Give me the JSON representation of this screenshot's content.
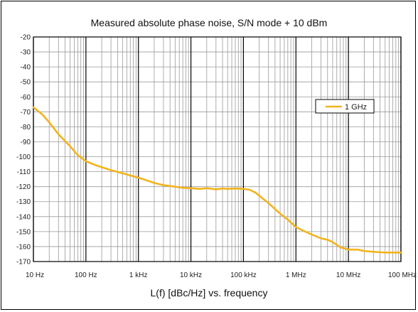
{
  "colors": {
    "series": "#f2b41c",
    "grid_major": "#000000",
    "grid_minor": "#9a9a9a",
    "background": "#ffffff"
  },
  "chart_data": {
    "type": "line",
    "title": "Measured absolute phase noise, S/N mode + 10 dBm",
    "xlabel": "L(f) [dBc/Hz] vs. frequency",
    "ylabel": "",
    "x_scale": "log",
    "xlim": [
      10,
      100000000
    ],
    "ylim": [
      -170,
      -20
    ],
    "grid": true,
    "legend_position": "right",
    "x_ticks": [
      10,
      100,
      1000,
      10000,
      100000,
      1000000,
      10000000,
      100000000
    ],
    "x_tick_labels": [
      "10 Hz",
      "100 Hz",
      "1 kHz",
      "10 kHz",
      "100 kHz",
      "1 MHz",
      "10 MHz",
      "100 MHz"
    ],
    "y_ticks": [
      -20,
      -30,
      -40,
      -50,
      -60,
      -70,
      -80,
      -90,
      -100,
      -110,
      -120,
      -130,
      -140,
      -150,
      -160,
      -170
    ],
    "y_tick_labels": [
      "-20",
      "-30",
      "-40",
      "-50",
      "-60",
      "-70",
      "-80",
      "-90",
      "-100",
      "-110",
      "-120",
      "-130",
      "-140",
      "-150",
      "-160",
      "-170"
    ],
    "series": [
      {
        "name": "1 GHz",
        "points": [
          [
            10,
            -67
          ],
          [
            15,
            -72
          ],
          [
            20,
            -77
          ],
          [
            30,
            -85
          ],
          [
            50,
            -93
          ],
          [
            70,
            -99
          ],
          [
            100,
            -103
          ],
          [
            150,
            -105.5
          ],
          [
            200,
            -107
          ],
          [
            300,
            -109
          ],
          [
            500,
            -111
          ],
          [
            700,
            -112.5
          ],
          [
            1000,
            -114
          ],
          [
            1500,
            -116
          ],
          [
            2000,
            -117.5
          ],
          [
            3000,
            -119
          ],
          [
            5000,
            -120
          ],
          [
            7000,
            -120.8
          ],
          [
            10000,
            -121
          ],
          [
            15000,
            -121.5
          ],
          [
            20000,
            -121
          ],
          [
            30000,
            -121.8
          ],
          [
            40000,
            -121.2
          ],
          [
            50000,
            -121.5
          ],
          [
            70000,
            -121.2
          ],
          [
            100000,
            -121.5
          ],
          [
            130000,
            -122
          ],
          [
            170000,
            -124
          ],
          [
            200000,
            -126
          ],
          [
            300000,
            -131
          ],
          [
            500000,
            -138
          ],
          [
            700000,
            -142
          ],
          [
            1000000,
            -147
          ],
          [
            1500000,
            -150
          ],
          [
            2000000,
            -152
          ],
          [
            3000000,
            -154.5
          ],
          [
            4000000,
            -155.5
          ],
          [
            5000000,
            -157
          ],
          [
            7000000,
            -160.5
          ],
          [
            10000000,
            -162
          ],
          [
            15000000,
            -162
          ],
          [
            20000000,
            -163
          ],
          [
            30000000,
            -163.5
          ],
          [
            50000000,
            -164
          ],
          [
            100000000,
            -164
          ]
        ]
      }
    ]
  }
}
